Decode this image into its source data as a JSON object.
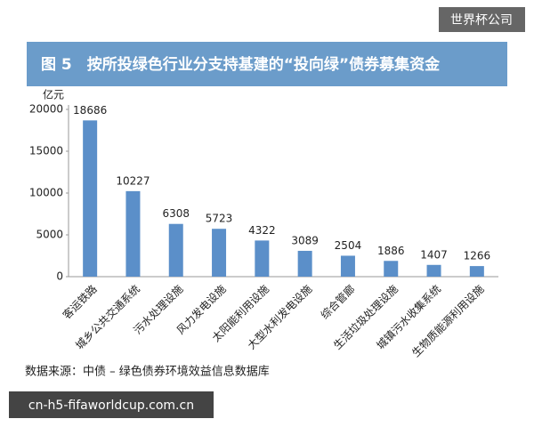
{
  "chart_data": {
    "type": "bar",
    "title": "图 5　按所投绿色行业分支持基建的“投向绿”债券募集资金",
    "y_label": "亿元",
    "categories": [
      "客运铁路",
      "城乡公共交通系统",
      "污水处理设施",
      "风力发电设施",
      "太阳能利用设施",
      "大型水利发电设施",
      "综合管廊",
      "生活垃圾处理设施",
      "城镇污水收集系统",
      "生物质能源利用设施"
    ],
    "values": [
      18686,
      10227,
      6308,
      5723,
      4322,
      3089,
      2504,
      1886,
      1407,
      1266
    ],
    "color": "#5b8fc9",
    "ylim": [
      0,
      20000
    ],
    "yticks": [
      0,
      5000,
      10000,
      15000,
      20000
    ],
    "grid": false,
    "source": "数据来源：中债 – 绿色债券环境效益信息数据库"
  },
  "watermarks": {
    "top": "世界杯公司",
    "bottom": "cn-h5-fifaworldcup.com.cn"
  }
}
